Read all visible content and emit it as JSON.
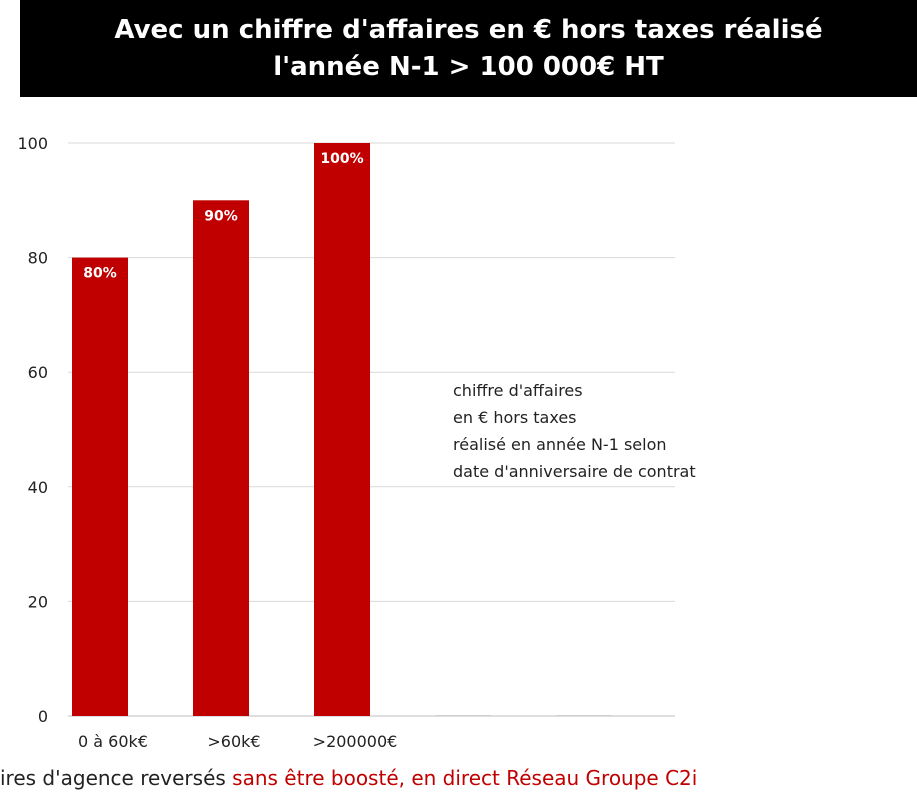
{
  "title": {
    "line1": "Avec un chiffre d'affaires en € hors taxes réalisé",
    "line2": "l'année N-1 > 100 000€ HT"
  },
  "colors": {
    "bar": "#c00000",
    "banner": "#000000",
    "gridline": "#d9d9d9",
    "highlight": "#c00000"
  },
  "chart_data": {
    "type": "bar",
    "categories": [
      "0 à 60k€",
      ">60k€",
      ">200000€",
      "",
      ""
    ],
    "values": [
      80,
      90,
      100,
      0,
      0
    ],
    "data_labels": [
      "80%",
      "90%",
      "100%",
      "",
      ""
    ],
    "yticks": [
      0,
      20,
      40,
      60,
      80,
      100
    ],
    "ylim": [
      0,
      100
    ],
    "grid": true
  },
  "annotation": {
    "lines": [
      "chiffre d'affaires",
      "en € hors taxes",
      "réalisé en année N-1 selon",
      "date d'anniversaire de contrat"
    ]
  },
  "footer": {
    "text_plain": "ires d'agence reversés ",
    "text_highlight": "sans être boosté, en direct Réseau Groupe C2i"
  }
}
